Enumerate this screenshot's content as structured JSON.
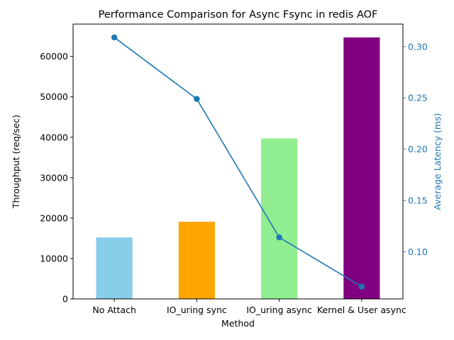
{
  "chart_data": {
    "type": "bar+line",
    "title": "Performance Comparison for Async Fsync in redis AOF",
    "xlabel": "Method",
    "ylabel_left": "Throughput (req/sec)",
    "ylabel_right": "Average Latency (ms)",
    "categories": [
      "No Attach",
      "IO_uring sync",
      "IO_uring async",
      "Kernel & User async"
    ],
    "bar_series": {
      "name": "Throughput",
      "values": [
        15200,
        19100,
        39700,
        64700
      ],
      "colors": [
        "#87ceeb",
        "#ffa500",
        "#90ee90",
        "#800080"
      ]
    },
    "line_series": {
      "name": "Average Latency",
      "values": [
        0.309,
        0.249,
        0.114,
        0.066
      ],
      "color": "#1f77b4"
    },
    "ylim_left": [
      0,
      68000
    ],
    "ylim_right": [
      0.054,
      0.322
    ],
    "yticks_left": [
      0,
      10000,
      20000,
      30000,
      40000,
      50000,
      60000
    ],
    "yticks_right": [
      0.1,
      0.15,
      0.2,
      0.25,
      0.3
    ],
    "right_axis_color": "#1f77b4",
    "grid": false,
    "legend": "none"
  }
}
